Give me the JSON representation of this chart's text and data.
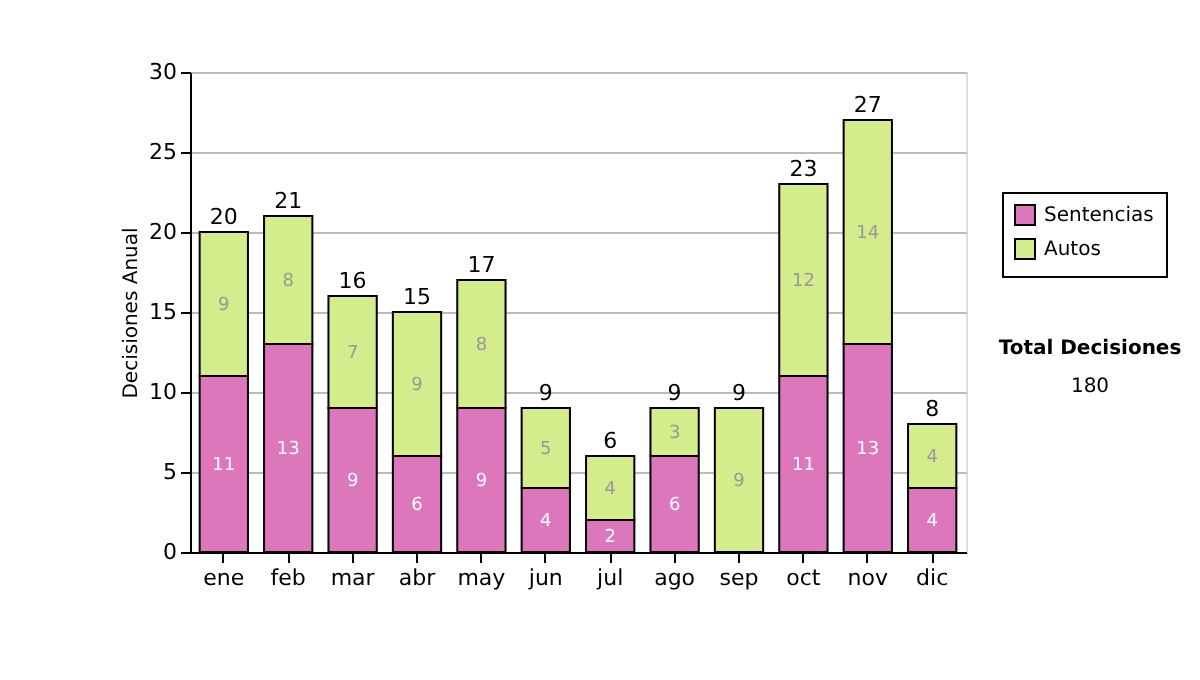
{
  "chart_data": {
    "type": "bar",
    "stacked": true,
    "ylabel": "Decisiones Anual",
    "categories": [
      "ene",
      "feb",
      "mar",
      "abr",
      "may",
      "jun",
      "jul",
      "ago",
      "sep",
      "oct",
      "nov",
      "dic"
    ],
    "series": [
      {
        "name": "Sentencias",
        "color": "#dd77bb",
        "values": [
          11,
          13,
          9,
          6,
          9,
          4,
          2,
          6,
          0,
          11,
          13,
          4
        ],
        "value_labels": [
          "11",
          "13",
          "9",
          "6",
          "9",
          "4",
          "2",
          "6",
          null,
          "11",
          "13",
          "4"
        ]
      },
      {
        "name": "Autos",
        "color": "#d4ec8c",
        "values": [
          9,
          8,
          7,
          9,
          8,
          5,
          4,
          3,
          9,
          12,
          14,
          4
        ],
        "value_labels": [
          "9",
          "8",
          "7",
          "9",
          "8",
          "5",
          "4",
          "3",
          "9",
          "12",
          "14",
          "4"
        ]
      }
    ],
    "totals": [
      "20",
      "21",
      "16",
      "15",
      "17",
      "9",
      "6",
      "9",
      "9",
      "23",
      "27",
      "8"
    ],
    "ylim": [
      0,
      30
    ],
    "yticks": [
      0,
      5,
      10,
      15,
      20,
      25,
      30
    ],
    "grid": "y",
    "legend": "right",
    "annotations": [
      "Total Decisiones",
      "180"
    ]
  }
}
